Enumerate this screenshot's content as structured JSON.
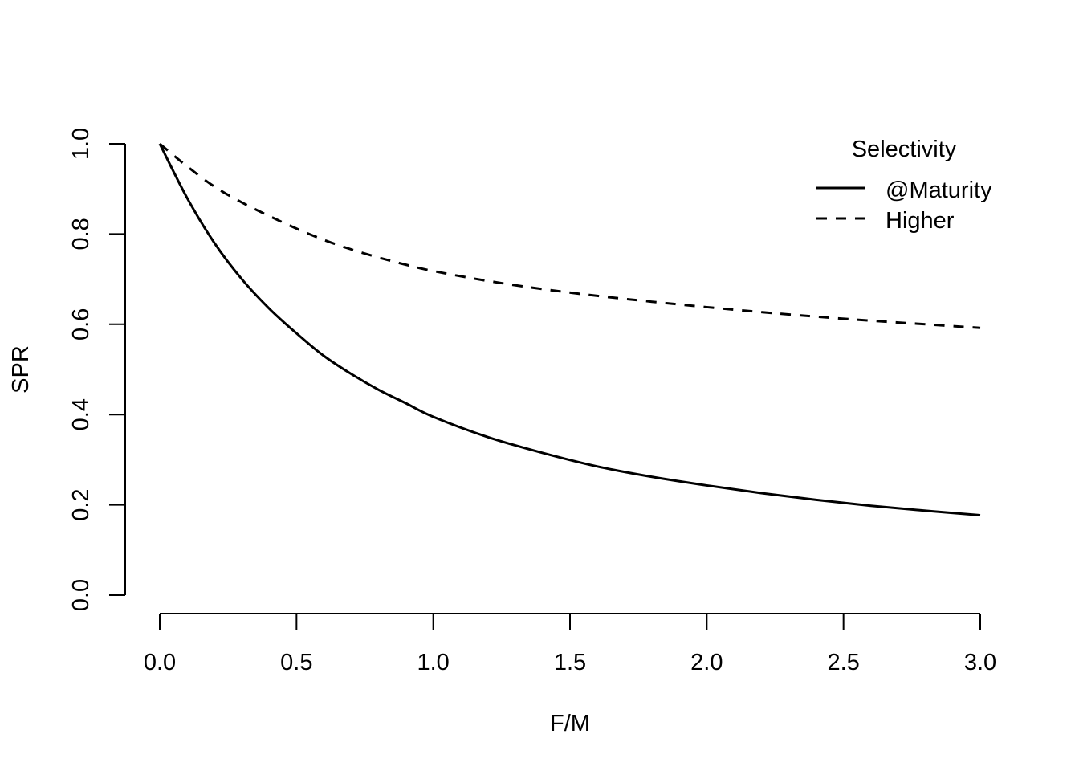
{
  "chart_data": {
    "type": "line",
    "title": "",
    "xlabel": "F/M",
    "ylabel": "SPR",
    "xlim": [
      0,
      3
    ],
    "ylim": [
      0,
      1
    ],
    "x_ticks": [
      "0.0",
      "0.5",
      "1.0",
      "1.5",
      "2.0",
      "2.5",
      "3.0"
    ],
    "y_ticks": [
      "0.0",
      "0.2",
      "0.4",
      "0.6",
      "0.8",
      "1.0"
    ],
    "grid": false,
    "legend": {
      "title": "Selectivity",
      "position": "top-right"
    },
    "series": [
      {
        "name": "@Maturity",
        "line_style": "solid",
        "color": "#000000",
        "x": [
          0,
          0.1,
          0.2,
          0.3,
          0.4,
          0.5,
          0.6,
          0.7,
          0.8,
          0.9,
          1.0,
          1.2,
          1.4,
          1.6,
          1.8,
          2.0,
          2.2,
          2.4,
          2.6,
          2.8,
          3.0
        ],
        "y": [
          1.0,
          0.88,
          0.78,
          0.7,
          0.635,
          0.58,
          0.53,
          0.49,
          0.455,
          0.425,
          0.395,
          0.35,
          0.315,
          0.285,
          0.262,
          0.243,
          0.226,
          0.211,
          0.198,
          0.187,
          0.177
        ]
      },
      {
        "name": "Higher",
        "line_style": "dashed",
        "color": "#000000",
        "x": [
          0,
          0.1,
          0.2,
          0.3,
          0.4,
          0.5,
          0.6,
          0.7,
          0.8,
          0.9,
          1.0,
          1.2,
          1.4,
          1.6,
          1.8,
          2.0,
          2.2,
          2.4,
          2.6,
          2.8,
          3.0
        ],
        "y": [
          1.0,
          0.95,
          0.905,
          0.87,
          0.84,
          0.812,
          0.787,
          0.766,
          0.748,
          0.732,
          0.718,
          0.696,
          0.678,
          0.663,
          0.65,
          0.638,
          0.627,
          0.617,
          0.608,
          0.6,
          0.592
        ]
      }
    ]
  }
}
